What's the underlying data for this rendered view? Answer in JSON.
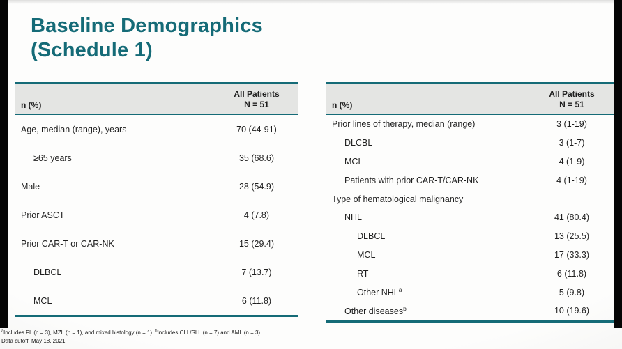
{
  "colors": {
    "accent_teal": "#156b77",
    "header_bg": "#e4e5e3"
  },
  "slide": {
    "title_line1": "Baseline Demographics",
    "title_line2": "(Schedule 1)"
  },
  "left_table": {
    "header_col1": "n (%)",
    "header_col2_line1": "All Patients",
    "header_col2_line2": "N = 51",
    "rows": [
      {
        "label": "Age, median (range), years",
        "value": "70 (44-91)",
        "indent": 0
      },
      {
        "label": "≥65 years",
        "value": "35 (68.6)",
        "indent": 1
      },
      {
        "label": "Male",
        "value": "28 (54.9)",
        "indent": 0
      },
      {
        "label": "Prior ASCT",
        "value": "4 (7.8)",
        "indent": 0
      },
      {
        "label": "Prior CAR-T or CAR-NK",
        "value": "15 (29.4)",
        "indent": 0
      },
      {
        "label": "DLBCL",
        "value": "7 (13.7)",
        "indent": 1
      },
      {
        "label": "MCL",
        "value": "6 (11.8)",
        "indent": 1
      }
    ]
  },
  "right_table": {
    "header_col1": "n (%)",
    "header_col2_line1": "All Patients",
    "header_col2_line2": "N = 51",
    "rows": [
      {
        "label": "Prior lines of therapy, median (range)",
        "value": "3 (1-19)",
        "indent": 0
      },
      {
        "label": "DLCBL",
        "value": "3 (1-7)",
        "indent": 1
      },
      {
        "label": "MCL",
        "value": "4 (1-9)",
        "indent": 1
      },
      {
        "label": "Patients with prior CAR-T/CAR-NK",
        "value": "4 (1-19)",
        "indent": 1
      },
      {
        "label": "Type of hematological malignancy",
        "value": "",
        "indent": 0
      },
      {
        "label": "NHL",
        "value": "41 (80.4)",
        "indent": 1
      },
      {
        "label": "DLBCL",
        "value": "13 (25.5)",
        "indent": 2
      },
      {
        "label": "MCL",
        "value": "17 (33.3)",
        "indent": 2
      },
      {
        "label": "RT",
        "value": "6 (11.8)",
        "indent": 2
      },
      {
        "label": "Other NHL",
        "sup": "a",
        "value": "5 (9.8)",
        "indent": 2
      },
      {
        "label": "Other diseases",
        "sup": "b",
        "value": "10 (19.6)",
        "indent": 1
      }
    ]
  },
  "footnotes": {
    "sup_a": "a",
    "text_a": "Includes FL (n = 3), MZL (n = 1), and mixed histology (n = 1). ",
    "sup_b": "b",
    "text_b": "Includes CLL/SLL (n = 7) and AML (n = 3).",
    "line2": "Data cutoff: May 18, 2021."
  }
}
